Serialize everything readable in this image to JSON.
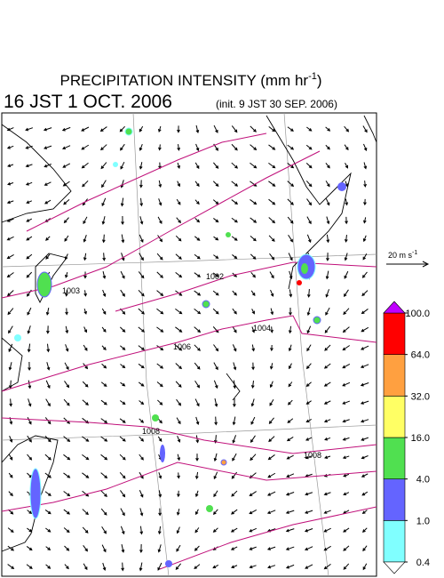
{
  "header": {
    "title": "PRECIPITATION INTENSITY (mm hr",
    "title_sup": "-1",
    "title_end": ")",
    "valid_time": "16 JST 1 OCT. 2006",
    "init_time": "(init. 9 JST 30 SEP. 2006)"
  },
  "wind_scale": {
    "label": "20 m s",
    "label_sup": "-1"
  },
  "contour_labels": [
    "1003",
    "1002",
    "1004",
    "1006",
    "1008",
    "1008"
  ],
  "colorbar": {
    "levels": [
      {
        "value": 0.4,
        "label": "0.4"
      },
      {
        "value": 1,
        "label": "1.0"
      },
      {
        "value": 4,
        "label": "4.0"
      },
      {
        "value": 16,
        "label": "16.0"
      },
      {
        "value": 32,
        "label": "32.0"
      },
      {
        "value": 64,
        "label": "64.0"
      },
      {
        "value": 100,
        "label": "100.0"
      }
    ],
    "colors": [
      "#80ffff",
      "#6464ff",
      "#50e050",
      "#ffff64",
      "#ffa040",
      "#ff0000"
    ],
    "over_color": "#c000ff",
    "under_color": "#ffffff"
  }
}
